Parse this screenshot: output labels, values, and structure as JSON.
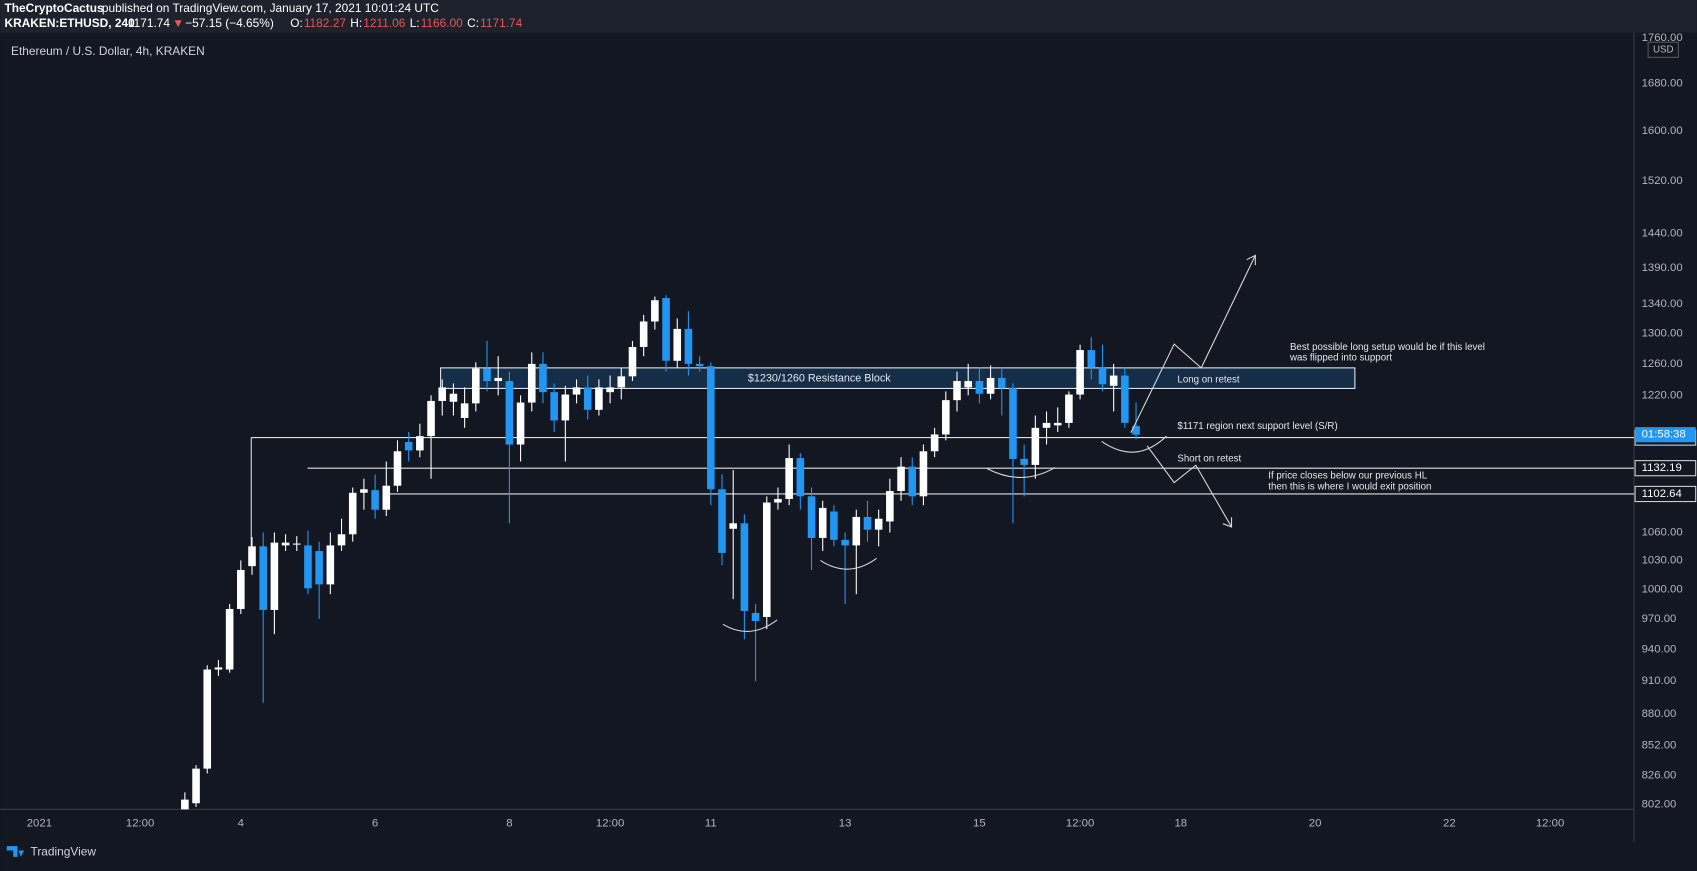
{
  "header": {
    "publisher": "TheCryptoCactus",
    "published": "published on TradingView.com, January 17, 2021 10:01:24 UTC",
    "symbol": "KRAKEN:ETHUSD, 240",
    "last": "1171.74",
    "arrow": "▼",
    "change": "−57.15 (−4.65%)",
    "fields": [
      {
        "key": "O:",
        "value": "1182.27"
      },
      {
        "key": "H:",
        "value": "1211.06"
      },
      {
        "key": "L:",
        "value": "1166.00"
      },
      {
        "key": "C:",
        "value": "1171.74"
      }
    ]
  },
  "chart_data": {
    "type": "candlestick",
    "title": "Ethereum / U.S. Dollar, 4h, KRAKEN",
    "currency": "USD",
    "log": true,
    "grid": false,
    "up_color": "#ffffff",
    "down_color": "#2196f3",
    "x": [
      52,
      56,
      60,
      64,
      68,
      72,
      76,
      80,
      84,
      88,
      92,
      96,
      100,
      104,
      108,
      112,
      116,
      120,
      124,
      128,
      132,
      136,
      140,
      144,
      148,
      152,
      156,
      160,
      164,
      168,
      172,
      176,
      180,
      184,
      188,
      192,
      196,
      200,
      204,
      208,
      212,
      216,
      220,
      224,
      228,
      232,
      236,
      240,
      244,
      248,
      252,
      256,
      260,
      264,
      268,
      272,
      276,
      280,
      284,
      288,
      292,
      296,
      300,
      304,
      308,
      312,
      316,
      320,
      324,
      328,
      332,
      336,
      340,
      344,
      348,
      352,
      356,
      360,
      364,
      368,
      372,
      376,
      380,
      384,
      388,
      392
    ],
    "open": [
      795,
      803,
      832,
      921,
      921,
      980,
      1024,
      1045,
      979,
      1046,
      1047,
      1046,
      1040,
      1005,
      1046,
      1058,
      1104,
      1107,
      1085,
      1112,
      1163,
      1153,
      1170,
      1213,
      1212,
      1192,
      1210,
      1254,
      1238,
      1238,
      1160,
      1211,
      1260,
      1224,
      1189,
      1221,
      1230,
      1202,
      1224,
      1230,
      1244,
      1282,
      1316,
      1348,
      1264,
      1306,
      1260,
      1257,
      1108,
      1064,
      1070,
      976,
      972,
      1093,
      1097,
      1144,
      1100,
      1054,
      1083,
      1052,
      1046,
      1077,
      1063,
      1072,
      1106,
      1134,
      1100,
      1152,
      1172,
      1214,
      1230,
      1238,
      1222,
      1242,
      1229,
      1143,
      1136,
      1180,
      1183,
      1186,
      1221,
      1278,
      1255,
      1232,
      1245,
      1182.27
    ],
    "high": [
      812,
      835,
      925,
      930,
      985,
      1030,
      1055,
      1060,
      1060,
      1058,
      1056,
      1062,
      1050,
      1060,
      1075,
      1110,
      1120,
      1125,
      1140,
      1165,
      1175,
      1185,
      1220,
      1240,
      1235,
      1230,
      1262,
      1290,
      1270,
      1250,
      1220,
      1275,
      1275,
      1235,
      1232,
      1240,
      1245,
      1240,
      1245,
      1255,
      1290,
      1325,
      1350,
      1352,
      1320,
      1330,
      1270,
      1262,
      1125,
      1130,
      1080,
      985,
      1100,
      1110,
      1160,
      1150,
      1110,
      1095,
      1090,
      1060,
      1085,
      1095,
      1085,
      1120,
      1145,
      1145,
      1160,
      1180,
      1225,
      1250,
      1260,
      1255,
      1258,
      1255,
      1235,
      1160,
      1195,
      1200,
      1205,
      1225,
      1285,
      1295,
      1285,
      1260,
      1255,
      1211.06
    ],
    "low": [
      790,
      800,
      828,
      915,
      918,
      975,
      1015,
      890,
      955,
      1040,
      1040,
      995,
      970,
      995,
      1040,
      1050,
      1085,
      1075,
      1078,
      1105,
      1140,
      1145,
      1120,
      1195,
      1195,
      1180,
      1200,
      1225,
      1220,
      1070,
      1140,
      1200,
      1210,
      1175,
      1140,
      1210,
      1190,
      1195,
      1210,
      1215,
      1238,
      1270,
      1305,
      1250,
      1255,
      1245,
      1250,
      1090,
      1025,
      990,
      950,
      910,
      960,
      1085,
      1090,
      1085,
      1020,
      1040,
      1045,
      985,
      995,
      1050,
      1045,
      1060,
      1095,
      1090,
      1090,
      1145,
      1165,
      1200,
      1220,
      1210,
      1215,
      1195,
      1070,
      1100,
      1120,
      1160,
      1175,
      1180,
      1215,
      1240,
      1225,
      1200,
      1180,
      1166.0
    ],
    "close": [
      806,
      832,
      921,
      923,
      980,
      1020,
      1045,
      979,
      1049,
      1049,
      1048,
      1001,
      1005,
      1046,
      1058,
      1104,
      1108,
      1085,
      1112,
      1152,
      1153,
      1170,
      1213,
      1230,
      1222,
      1210,
      1254,
      1238,
      1242,
      1160,
      1211,
      1260,
      1224,
      1189,
      1221,
      1230,
      1202,
      1230,
      1230,
      1244,
      1282,
      1316,
      1345,
      1264,
      1306,
      1260,
      1257,
      1108,
      1038,
      1070,
      978,
      968,
      1093,
      1097,
      1144,
      1100,
      1054,
      1087,
      1052,
      1046,
      1077,
      1063,
      1075,
      1106,
      1134,
      1100,
      1152,
      1172,
      1214,
      1238,
      1238,
      1222,
      1242,
      1229,
      1143,
      1136,
      1180,
      1186,
      1186,
      1221,
      1278,
      1255,
      1234,
      1245,
      1186,
      1171.74
    ],
    "xlim": [
      -14,
      570
    ],
    "xticks": [
      {
        "value": 0,
        "label": "2021"
      },
      {
        "value": 36,
        "label": "12:00"
      },
      {
        "value": 72,
        "label": "4"
      },
      {
        "value": 120,
        "label": "6"
      },
      {
        "value": 168,
        "label": "8"
      },
      {
        "value": 204,
        "label": "12:00"
      },
      {
        "value": 240,
        "label": "11"
      },
      {
        "value": 288,
        "label": "13"
      },
      {
        "value": 336,
        "label": "15"
      },
      {
        "value": 372,
        "label": "12:00"
      },
      {
        "value": 408,
        "label": "18"
      },
      {
        "value": 456,
        "label": "20"
      },
      {
        "value": 504,
        "label": "22"
      },
      {
        "value": 540,
        "label": "12:00"
      }
    ],
    "ylim": [
      798,
      1766
    ],
    "yticks": [
      {
        "value": 802,
        "label": "802.00"
      },
      {
        "value": 826,
        "label": "826.00"
      },
      {
        "value": 852,
        "label": "852.00"
      },
      {
        "value": 880,
        "label": "880.00"
      },
      {
        "value": 910,
        "label": "910.00"
      },
      {
        "value": 940,
        "label": "940.00"
      },
      {
        "value": 970,
        "label": "970.00"
      },
      {
        "value": 1000,
        "label": "1000.00"
      },
      {
        "value": 1030,
        "label": "1030.00"
      },
      {
        "value": 1060,
        "label": "1060.00"
      },
      {
        "value": 1220,
        "label": "1220.00"
      },
      {
        "value": 1260,
        "label": "1260.00"
      },
      {
        "value": 1300,
        "label": "1300.00"
      },
      {
        "value": 1340,
        "label": "1340.00"
      },
      {
        "value": 1390,
        "label": "1390.00"
      },
      {
        "value": 1440,
        "label": "1440.00"
      },
      {
        "value": 1520,
        "label": "1520.00"
      },
      {
        "value": 1600,
        "label": "1600.00"
      },
      {
        "value": 1680,
        "label": "1680.00"
      },
      {
        "value": 1760,
        "label": "1760.00"
      }
    ],
    "levels": [
      1168.29,
      1132.19,
      1102.64
    ],
    "countdown": "01:58:38",
    "annotations": {
      "block": "$1230/1260 Resistance Block",
      "long": "Long on retest",
      "best": [
        "Best possible long setup would be if this level",
        "was flipped into support"
      ],
      "support": "$1171 region next support level (S/R)",
      "short": "Short on retest",
      "exit": [
        "If price closes below our previous HL",
        "then this is where I would exit position"
      ]
    }
  },
  "footer": {
    "brand": "TradingView"
  }
}
